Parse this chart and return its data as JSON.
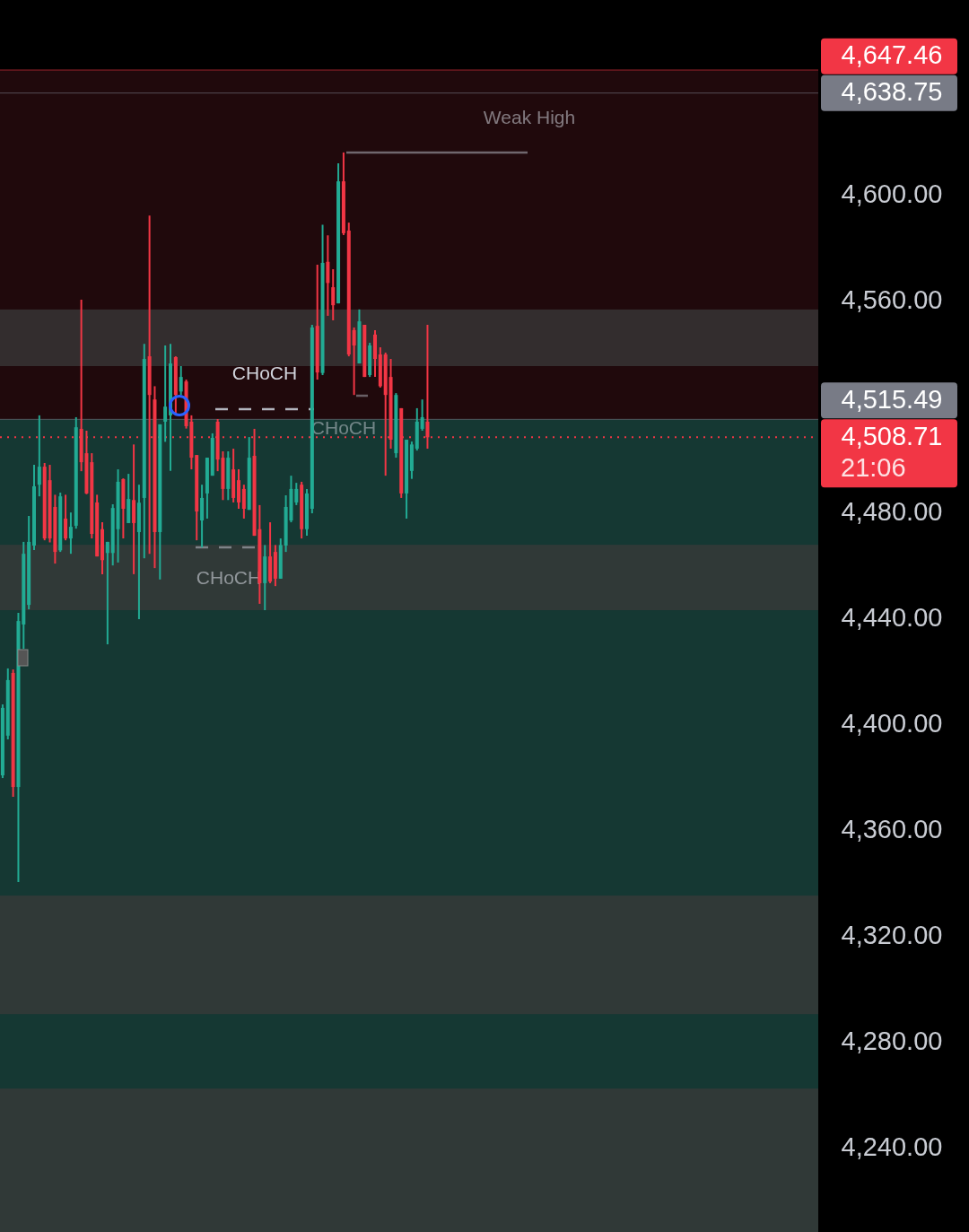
{
  "chart_data": {
    "type": "candlestick",
    "tick_labels": "y",
    "categories": [
      null,
      null,
      null,
      null,
      null,
      null,
      null,
      null,
      null,
      null,
      null,
      null,
      null,
      null,
      null,
      null,
      null,
      null,
      null,
      null,
      null,
      null,
      null,
      null,
      null,
      null,
      null,
      null,
      null,
      null,
      null,
      null,
      null,
      null,
      null,
      null,
      null,
      null,
      null,
      null,
      null,
      null,
      null,
      null,
      null,
      null,
      null,
      null,
      null,
      null,
      null,
      null,
      null,
      null,
      null,
      null,
      null,
      null,
      null,
      null,
      null,
      null,
      null,
      null,
      null,
      null,
      null,
      null,
      null,
      null,
      null,
      null,
      null,
      null,
      null,
      null,
      null,
      null,
      null,
      null,
      null,
      null,
      null,
      null,
      null,
      null,
      null,
      null,
      null,
      null,
      null,
      null,
      null,
      null,
      null,
      null,
      null,
      null,
      null,
      null,
      null,
      null,
      null,
      null,
      null,
      null,
      null,
      null,
      null,
      null,
      null,
      null,
      null,
      null,
      null,
      null,
      null,
      null,
      null,
      null,
      null,
      null,
      null,
      null,
      null,
      null,
      null,
      null,
      null,
      null,
      null,
      null,
      null,
      null,
      null,
      null,
      null,
      null,
      null,
      null,
      null,
      null,
      null,
      null,
      null,
      null,
      null,
      null,
      null,
      null,
      null,
      null,
      null,
      null,
      null,
      null
    ],
    "ohlc": [
      [
        4381,
        4407.8,
        4380,
        4406.5
      ],
      [
        4396,
        4421.4,
        4394.6,
        4417
      ],
      [
        4419.7,
        4421,
        4372.9,
        4376.6
      ],
      [
        4376.6,
        4442.4,
        4340.7,
        4439.3
      ],
      [
        4438,
        4469.2,
        4428.8,
        4464.7
      ],
      [
        4445.4,
        4479,
        4443.7,
        4469.2
      ],
      [
        4467.8,
        4498.3,
        4466.1,
        4490.2
      ],
      [
        4490.8,
        4517,
        4486.4,
        4497.6
      ],
      [
        4497.6,
        4499,
        4469.8,
        4470.5
      ],
      [
        4492.5,
        4498.3,
        4469,
        4470.5
      ],
      [
        4482.4,
        4487,
        4461,
        4465.4
      ],
      [
        4466,
        4487.8,
        4465.4,
        4486.4
      ],
      [
        4478,
        4487,
        4469.8,
        4470.5
      ],
      [
        4470.5,
        4480.3,
        4464.7,
        4474.9
      ],
      [
        4475.3,
        4516.3,
        4474.2,
        4512.5
      ],
      [
        4511.9,
        4560.7,
        4495.9,
        4499.3
      ],
      [
        4502.7,
        4511.2,
        4487.2,
        4487.5
      ],
      [
        4499.3,
        4502.7,
        4470.5,
        4472.2
      ],
      [
        4484.1,
        4487,
        4463.7,
        4463.7
      ],
      [
        4474,
        4476.6,
        4457,
        4462.3
      ],
      [
        4465,
        4469.2,
        4430.5,
        4469.2
      ],
      [
        4465,
        4483.4,
        4460.3,
        4482
      ],
      [
        4474,
        4496.6,
        4461.4,
        4491.9
      ],
      [
        4492.9,
        4493.2,
        4470.5,
        4481.7
      ],
      [
        4476.3,
        4494.9,
        4476.3,
        4485.4
      ],
      [
        4485,
        4506,
        4457,
        4476.3
      ],
      [
        4472.9,
        4490.8,
        4440,
        4484
      ],
      [
        4485.8,
        4544,
        4463,
        4538.3
      ],
      [
        4539.3,
        4592.5,
        4464.7,
        4524.7
      ],
      [
        4523,
        4528,
        4459.3,
        4472.9
      ],
      [
        4472.9,
        4513.6,
        4455,
        4513.6
      ],
      [
        4514.6,
        4543.4,
        4507,
        4520.3
      ],
      [
        4517,
        4544,
        4496,
        4536.6
      ],
      [
        4539,
        4539.3,
        4517,
        4524.7
      ],
      [
        4526,
        4535.6,
        4524.7,
        4531.5
      ],
      [
        4529.8,
        4530.5,
        4512,
        4512.9
      ],
      [
        4514.6,
        4517,
        4496.6,
        4501
      ],
      [
        4502,
        4502,
        4469.8,
        4480.7
      ],
      [
        4477.3,
        4490.8,
        4467.1,
        4485.8
      ],
      [
        4487.5,
        4501,
        4478,
        4501
      ],
      [
        4494.2,
        4510.2,
        4494.2,
        4508.5
      ],
      [
        4514.6,
        4515.6,
        4495.9,
        4500.3
      ],
      [
        4501,
        4503.4,
        4485,
        4489.2
      ],
      [
        4489.2,
        4503.4,
        4485,
        4501
      ],
      [
        4496.6,
        4504.4,
        4484.1,
        4485.8
      ],
      [
        4492.5,
        4496.6,
        4481.7,
        4484.1
      ],
      [
        4489.2,
        4490.8,
        4478,
        4481.7
      ],
      [
        4481.3,
        4508.8,
        4481.3,
        4501
      ],
      [
        4501.7,
        4511.9,
        4471.5,
        4471.5
      ],
      [
        4474,
        4483.1,
        4445.8,
        4453.6
      ],
      [
        4453.6,
        4468,
        4443.4,
        4463.7
      ],
      [
        4463.7,
        4476.6,
        4453.6,
        4454.2
      ],
      [
        4465.4,
        4468,
        4452.5,
        4455.3
      ],
      [
        4455.3,
        4470.5,
        4455.3,
        4468
      ],
      [
        4467.8,
        4486.8,
        4465.4,
        4482.4
      ],
      [
        4477.3,
        4494.2,
        4476.6,
        4489.2
      ],
      [
        4484.1,
        4491.5,
        4483.1,
        4489.2
      ],
      [
        4490.8,
        4491.9,
        4470.5,
        4474
      ],
      [
        4474,
        4489.2,
        4471.5,
        4487.5
      ],
      [
        4481.7,
        4551.2,
        4480,
        4550.2
      ],
      [
        4550.8,
        4573.9,
        4530.5,
        4533.2
      ],
      [
        4533,
        4589,
        4532.2,
        4574.6
      ],
      [
        4575,
        4585,
        4554.6,
        4567
      ],
      [
        4565.4,
        4572.2,
        4552.9,
        4558.6
      ],
      [
        4559.3,
        4612.2,
        4559.3,
        4605.4
      ],
      [
        4605.4,
        4616.3,
        4585.1,
        4585.8
      ],
      [
        4586.8,
        4589.8,
        4539.3,
        4540
      ],
      [
        4549.2,
        4550.2,
        4524.7,
        4543.4
      ],
      [
        4536.6,
        4557,
        4536.6,
        4552.5
      ],
      [
        4551.2,
        4551.2,
        4531.5,
        4531.5
      ],
      [
        4532.2,
        4544.4,
        4531.5,
        4543.4
      ],
      [
        4547.5,
        4549.2,
        4531.5,
        4538.3
      ],
      [
        4540,
        4542.7,
        4527.5,
        4528
      ],
      [
        4540,
        4540.7,
        4494.2,
        4524.7
      ],
      [
        4531.5,
        4538.3,
        4504.4,
        4507.8
      ],
      [
        4502.7,
        4525.4,
        4501,
        4524.7
      ],
      [
        4519.7,
        4519.7,
        4485.8,
        4487.5
      ],
      [
        4487.5,
        4507.8,
        4478,
        4507.8
      ],
      [
        4496,
        4507.1,
        4493,
        4506
      ],
      [
        4504.4,
        4519.7,
        4503.7,
        4514.6
      ],
      [
        4511.9,
        4523,
        4511.2,
        4516.3
      ],
      [
        4514.6,
        4551.2,
        4504.4,
        4508.71
      ],
      null,
      null,
      null,
      null,
      null,
      null,
      null,
      null,
      null,
      null,
      null,
      null,
      null,
      null,
      null,
      null,
      null,
      null,
      null,
      null,
      null,
      null,
      null,
      null,
      null,
      null,
      null,
      null,
      null,
      null,
      null,
      null,
      null,
      null,
      null,
      null,
      null,
      null,
      null,
      null,
      null,
      null,
      null,
      null,
      null,
      null,
      null,
      null,
      null,
      null,
      null,
      null,
      null,
      null,
      null,
      null,
      null,
      null,
      null,
      null,
      null,
      null,
      null,
      null,
      null,
      null,
      null,
      null,
      null,
      null,
      null,
      null,
      null,
      null
    ],
    "ylim": [
      4208.5,
      4673.9
    ],
    "yticks": [
      {
        "value": 4240,
        "label": "4,240.00"
      },
      {
        "value": 4280,
        "label": "4,280.00"
      },
      {
        "value": 4320,
        "label": "4,320.00"
      },
      {
        "value": 4360,
        "label": "4,360.00"
      },
      {
        "value": 4400,
        "label": "4,400.00"
      },
      {
        "value": 4440,
        "label": "4,440.00"
      },
      {
        "value": 4480,
        "label": "4,480.00"
      },
      {
        "value": 4560,
        "label": "4,560.00"
      },
      {
        "value": 4600,
        "label": "4,600.00"
      }
    ],
    "bands": [
      {
        "axis": "y",
        "from": 4515.49,
        "to": 4647.46,
        "color": "#2b0c10"
      },
      {
        "axis": "y",
        "from": 4208.5,
        "to": 4515.49,
        "color": "#1c4b44"
      },
      {
        "axis": "y",
        "from": 4535.6,
        "to": 4557,
        "color": "#3a3a3a"
      },
      {
        "axis": "y",
        "from": 4443.4,
        "to": 4468.1,
        "color": "#3a3a3a"
      },
      {
        "axis": "y",
        "from": 4290.8,
        "to": 4335.6,
        "color": "#3a3a3a"
      },
      {
        "axis": "y",
        "from": 4208.5,
        "to": 4262.7,
        "color": "#3a3a3a"
      }
    ],
    "ref_lines": [
      {
        "axis": "y",
        "value": 4647.46,
        "label": "4,647.46",
        "color": "#f23645"
      },
      {
        "axis": "y",
        "value": 4638.75,
        "label": "4,638.75",
        "color": "#787b86"
      },
      {
        "axis": "y",
        "value": 4515.49,
        "label": "4,515.49",
        "color": "#787b86"
      },
      {
        "axis": "y",
        "value": 4508.71,
        "label": "4,508.71\n21:06",
        "color": "#f23645",
        "line_style": "dotted"
      }
    ],
    "annotations": [
      "Weak High",
      "CHoCH",
      "CHoCH",
      "CHoCH"
    ]
  }
}
